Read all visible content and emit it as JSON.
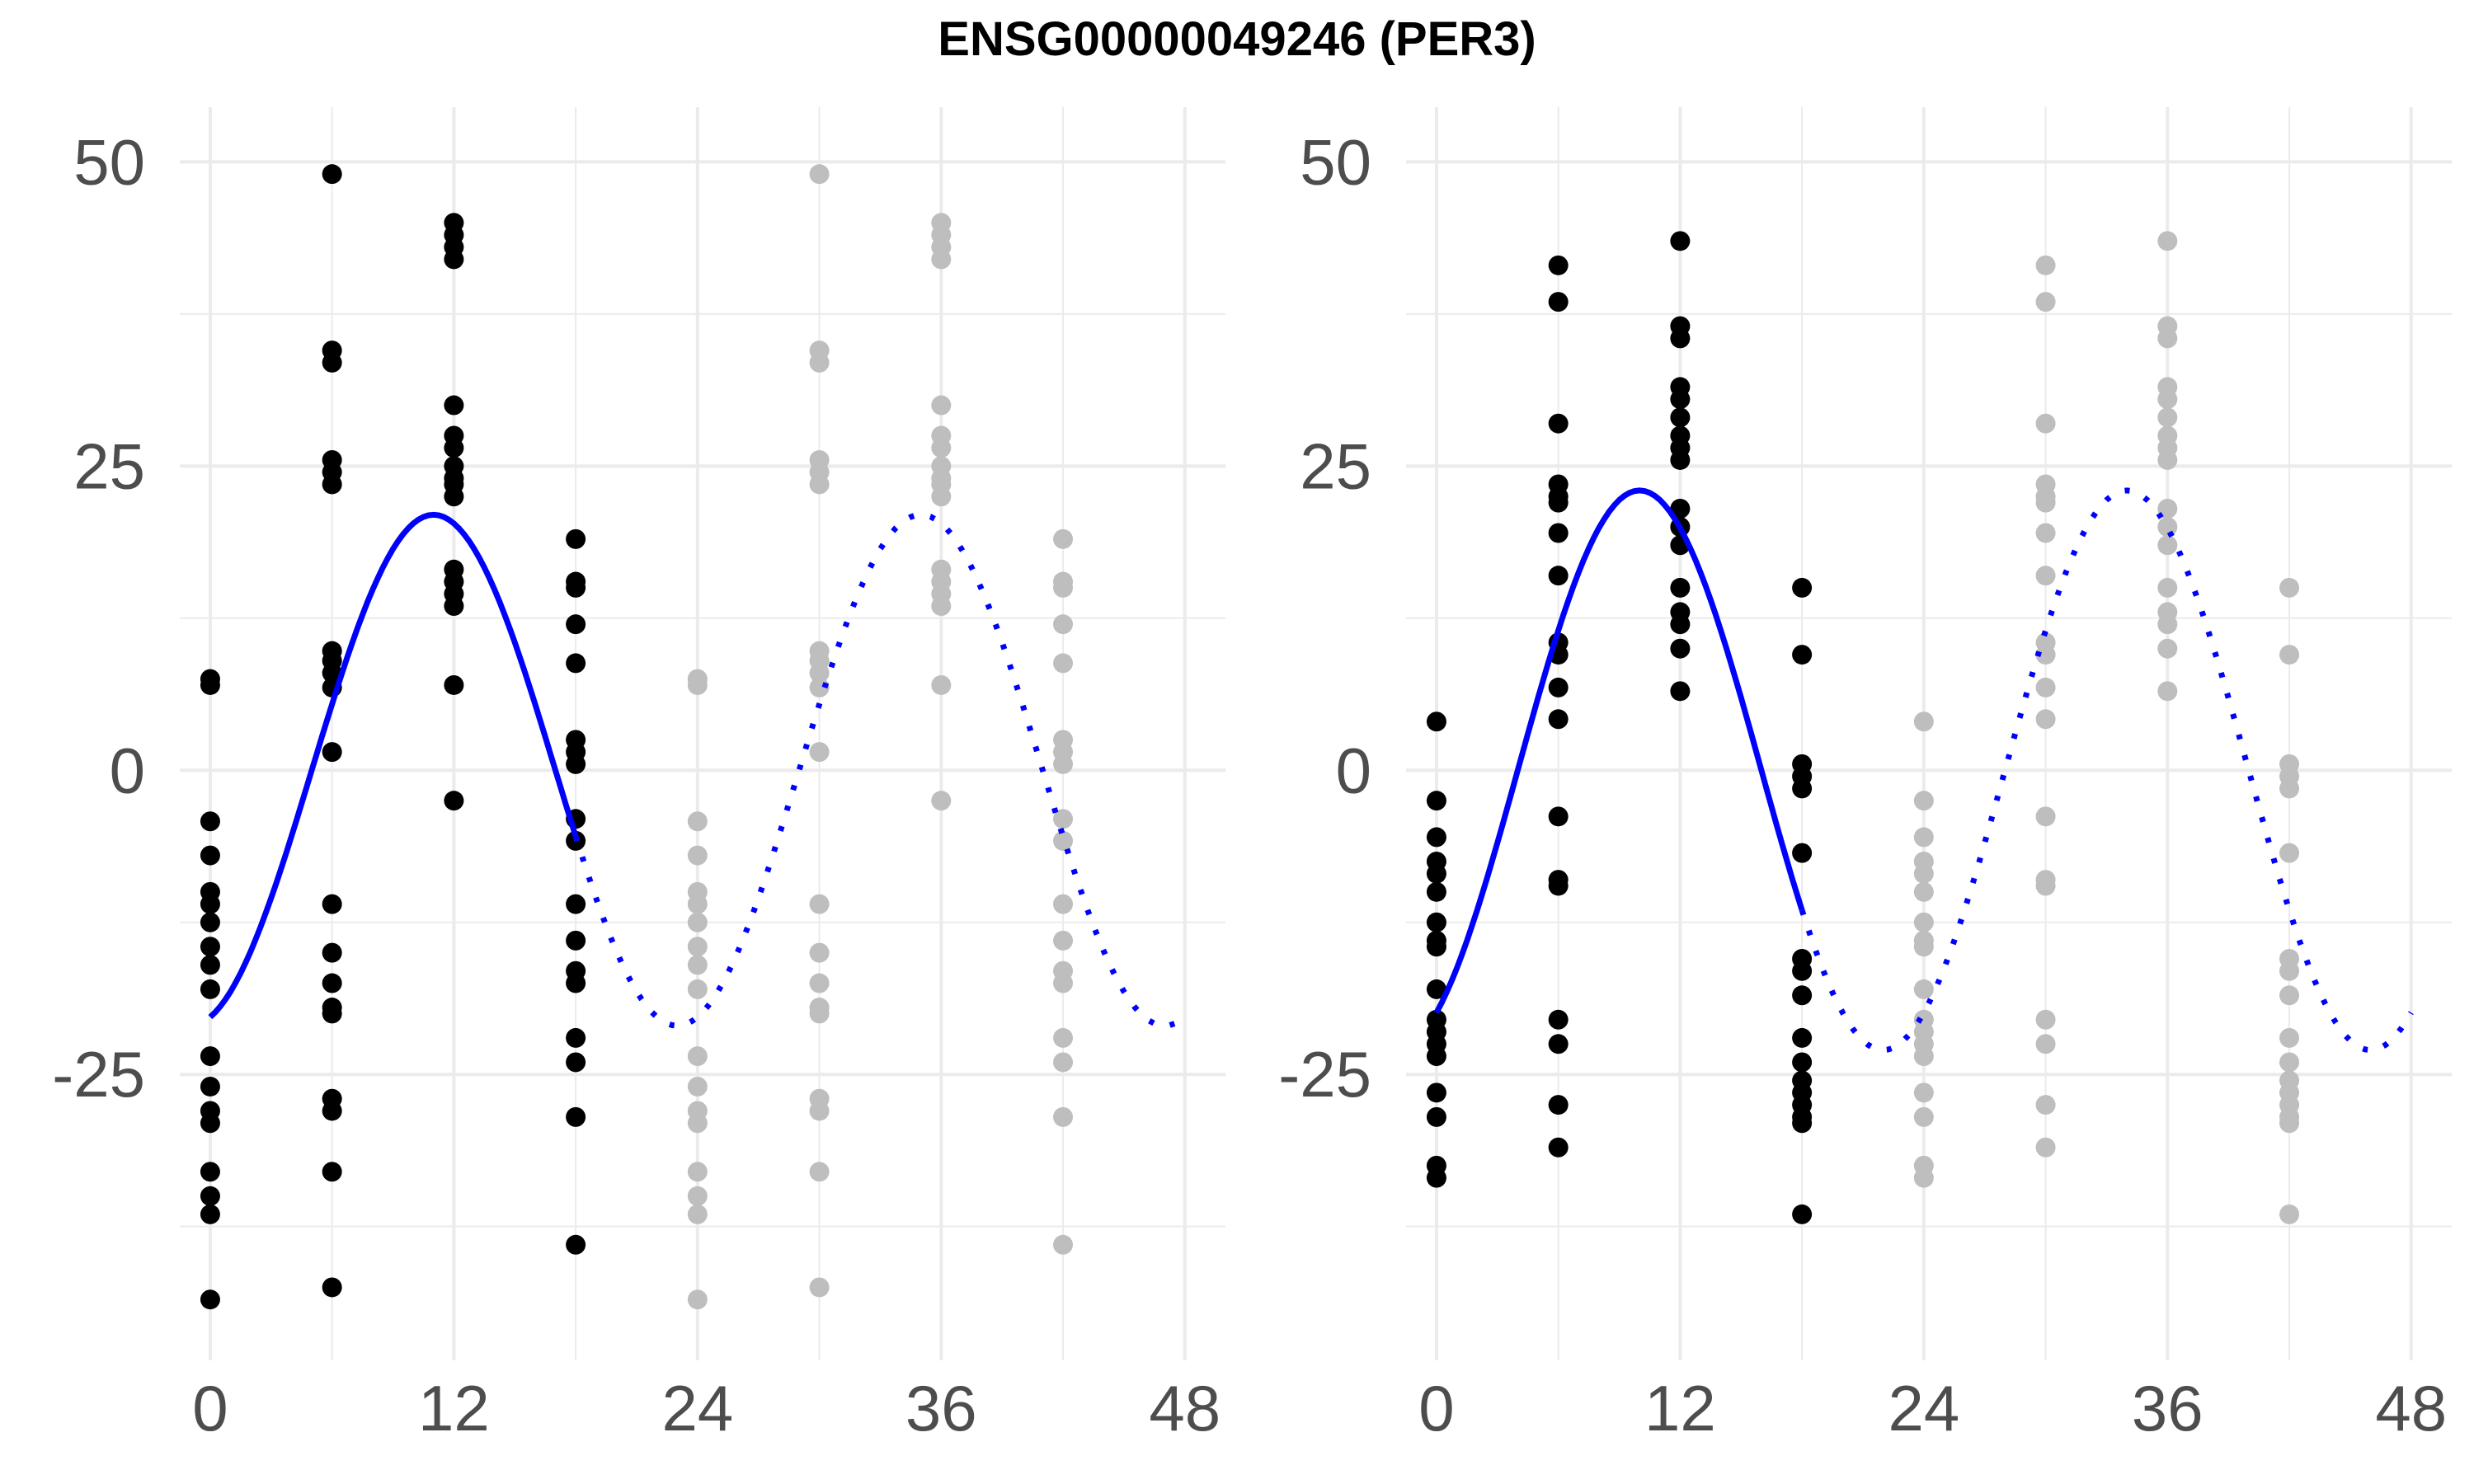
{
  "title": "ENSG00000049246 (PER3)",
  "colors": {
    "observed": "#000000",
    "repeated": "#bebebe",
    "fit": "#0000ff",
    "grid": "#ebebeb",
    "tick_text": "#4d4d4d"
  },
  "chart_data": [
    {
      "type": "scatter",
      "title": "",
      "xlabel": "",
      "ylabel": "",
      "xlim": [
        -1.5,
        50
      ],
      "ylim": [
        -48.5,
        54.5
      ],
      "x_ticks": [
        0,
        12,
        24,
        36,
        48
      ],
      "x_tick_labels": [
        "0",
        "12",
        "24",
        "36",
        "48"
      ],
      "y_ticks": [
        -25,
        0,
        25,
        50
      ],
      "y_tick_labels": [
        "-25",
        "0",
        "25",
        "50"
      ],
      "grid": true,
      "series": [
        {
          "role": "observed",
          "points": [
            {
              "x": 0,
              "ys": [
                7.5,
                7.0,
                -4.2,
                -7.0,
                -10.0,
                -11.0,
                -12.5,
                -14.5,
                -16.0,
                -18.0,
                -23.5,
                -26.0,
                -28.0,
                -29.0,
                -33.0,
                -35.0,
                -36.5,
                -43.5
              ]
            },
            {
              "x": 6,
              "ys": [
                49.0,
                34.5,
                33.5,
                25.5,
                24.5,
                23.5,
                9.8,
                9.0,
                8.0,
                6.8,
                1.5,
                -11.0,
                -15.0,
                -17.5,
                -19.5,
                -20.0,
                -27.0,
                -28.0,
                -33.0,
                -42.5
              ]
            },
            {
              "x": 12,
              "ys": [
                45.0,
                44.0,
                43.0,
                42.0,
                30.0,
                27.5,
                26.5,
                25.0,
                24.0,
                23.5,
                22.5,
                16.5,
                15.5,
                14.5,
                13.5,
                7.0,
                -2.5
              ]
            },
            {
              "x": 18,
              "ys": [
                19.0,
                15.5,
                15.0,
                12.0,
                8.8,
                2.5,
                1.5,
                0.5,
                -4.0,
                -5.8,
                -11.0,
                -14.0,
                -16.5,
                -17.5,
                -22.0,
                -24.0,
                -28.5,
                -39.0
              ]
            }
          ]
        },
        {
          "role": "repeated",
          "points": [
            {
              "x": 24,
              "ys": [
                7.5,
                7.0,
                -4.2,
                -7.0,
                -10.0,
                -11.0,
                -12.5,
                -14.5,
                -16.0,
                -18.0,
                -23.5,
                -26.0,
                -28.0,
                -29.0,
                -33.0,
                -35.0,
                -36.5,
                -43.5
              ]
            },
            {
              "x": 30,
              "ys": [
                49.0,
                34.5,
                33.5,
                25.5,
                24.5,
                23.5,
                9.8,
                9.0,
                8.0,
                6.8,
                1.5,
                -11.0,
                -15.0,
                -17.5,
                -19.5,
                -20.0,
                -27.0,
                -28.0,
                -33.0,
                -42.5
              ]
            },
            {
              "x": 36,
              "ys": [
                45.0,
                44.0,
                43.0,
                42.0,
                30.0,
                27.5,
                26.5,
                25.0,
                24.0,
                23.5,
                22.5,
                16.5,
                15.5,
                14.5,
                13.5,
                7.0,
                -2.5
              ]
            },
            {
              "x": 42,
              "ys": [
                19.0,
                15.5,
                15.0,
                12.0,
                8.8,
                2.5,
                1.5,
                0.5,
                -4.0,
                -5.8,
                -11.0,
                -14.0,
                -16.5,
                -17.5,
                -22.0,
                -24.0,
                -28.5,
                -39.0
              ]
            }
          ]
        }
      ],
      "fit": {
        "model": "cosinor",
        "period": 24,
        "mesor": 0,
        "amplitude": 21,
        "peak_x": 11,
        "solid_x_range": [
          0,
          18
        ],
        "dotted_x_range": [
          18,
          48
        ]
      }
    },
    {
      "type": "scatter",
      "title": "",
      "xlabel": "",
      "ylabel": "",
      "xlim": [
        -1.5,
        50
      ],
      "ylim": [
        -48.5,
        54.5
      ],
      "x_ticks": [
        0,
        12,
        24,
        36,
        48
      ],
      "x_tick_labels": [
        "0",
        "12",
        "24",
        "36",
        "48"
      ],
      "y_ticks": [
        -25,
        0,
        25,
        50
      ],
      "y_tick_labels": [
        "-25",
        "0",
        "25",
        "50"
      ],
      "grid": true,
      "series": [
        {
          "role": "observed",
          "points": [
            {
              "x": 0,
              "ys": [
                4.0,
                -2.5,
                -5.5,
                -7.5,
                -8.5,
                -10.0,
                -12.5,
                -14.0,
                -14.5,
                -18.0,
                -20.5,
                -21.5,
                -22.5,
                -23.5,
                -26.5,
                -28.5,
                -32.5,
                -33.5
              ]
            },
            {
              "x": 6,
              "ys": [
                41.5,
                38.5,
                28.5,
                23.5,
                22.5,
                22.0,
                19.5,
                16.0,
                10.5,
                9.5,
                6.8,
                4.2,
                -3.8,
                -9.0,
                -9.5,
                -20.5,
                -22.5,
                -27.5,
                -31.0
              ]
            },
            {
              "x": 12,
              "ys": [
                43.5,
                36.5,
                35.5,
                31.5,
                30.5,
                29.0,
                27.5,
                26.5,
                25.5,
                21.5,
                20.0,
                18.5,
                15.0,
                13.0,
                12.0,
                10.0,
                6.5
              ]
            },
            {
              "x": 18,
              "ys": [
                15.0,
                9.5,
                0.5,
                -0.5,
                -1.5,
                -6.8,
                -15.5,
                -16.5,
                -18.5,
                -22.0,
                -24.0,
                -25.5,
                -26.5,
                -27.5,
                -28.5,
                -29.0,
                -36.5
              ]
            }
          ]
        },
        {
          "role": "repeated",
          "points": [
            {
              "x": 24,
              "ys": [
                4.0,
                -2.5,
                -5.5,
                -7.5,
                -8.5,
                -10.0,
                -12.5,
                -14.0,
                -14.5,
                -18.0,
                -20.5,
                -21.5,
                -22.5,
                -23.5,
                -26.5,
                -28.5,
                -32.5,
                -33.5
              ]
            },
            {
              "x": 30,
              "ys": [
                41.5,
                38.5,
                28.5,
                23.5,
                22.5,
                22.0,
                19.5,
                16.0,
                10.5,
                9.5,
                6.8,
                4.2,
                -3.8,
                -9.0,
                -9.5,
                -20.5,
                -22.5,
                -27.5,
                -31.0
              ]
            },
            {
              "x": 36,
              "ys": [
                43.5,
                36.5,
                35.5,
                31.5,
                30.5,
                29.0,
                27.5,
                26.5,
                25.5,
                21.5,
                20.0,
                18.5,
                15.0,
                13.0,
                12.0,
                10.0,
                6.5
              ]
            },
            {
              "x": 42,
              "ys": [
                15.0,
                9.5,
                0.5,
                -0.5,
                -1.5,
                -6.8,
                -15.5,
                -16.5,
                -18.5,
                -22.0,
                -24.0,
                -25.5,
                -26.5,
                -27.5,
                -28.5,
                -29.0,
                -36.5
              ]
            }
          ]
        }
      ],
      "fit": {
        "model": "cosinor",
        "period": 24,
        "mesor": 0,
        "amplitude": 23,
        "peak_x": 10,
        "solid_x_range": [
          0,
          18
        ],
        "dotted_x_range": [
          18,
          48
        ]
      }
    }
  ]
}
